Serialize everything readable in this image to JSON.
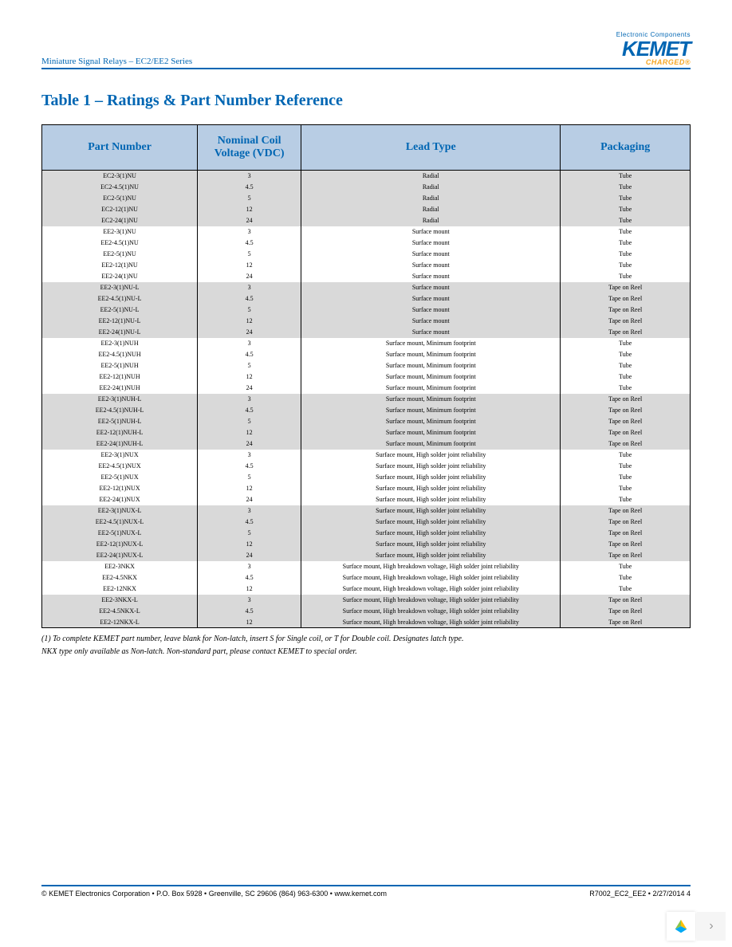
{
  "header": {
    "series": "Miniature Signal Relays – EC2/EE2 Series",
    "logo_tagline": "Electronic Components",
    "logo_text": "KEMET",
    "logo_sub": "CHARGED®"
  },
  "table": {
    "title": "Table 1 – Ratings & Part Number Reference",
    "columns": [
      "Part Number",
      "Nominal Coil Voltage (VDC)",
      "Lead Type",
      "Packaging"
    ],
    "groups": [
      {
        "shade": true,
        "rows": [
          [
            "EC2-3(1)NU",
            "3",
            "Radial",
            "Tube"
          ],
          [
            "EC2-4.5(1)NU",
            "4.5",
            "Radial",
            "Tube"
          ],
          [
            "EC2-5(1)NU",
            "5",
            "Radial",
            "Tube"
          ],
          [
            "EC2-12(1)NU",
            "12",
            "Radial",
            "Tube"
          ],
          [
            "EC2-24(1)NU",
            "24",
            "Radial",
            "Tube"
          ]
        ]
      },
      {
        "shade": false,
        "rows": [
          [
            "EE2-3(1)NU",
            "3",
            "Surface mount",
            "Tube"
          ],
          [
            "EE2-4.5(1)NU",
            "4.5",
            "Surface mount",
            "Tube"
          ],
          [
            "EE2-5(1)NU",
            "5",
            "Surface mount",
            "Tube"
          ],
          [
            "EE2-12(1)NU",
            "12",
            "Surface mount",
            "Tube"
          ],
          [
            "EE2-24(1)NU",
            "24",
            "Surface mount",
            "Tube"
          ]
        ]
      },
      {
        "shade": true,
        "rows": [
          [
            "EE2-3(1)NU-L",
            "3",
            "Surface mount",
            "Tape on Reel"
          ],
          [
            "EE2-4.5(1)NU-L",
            "4.5",
            "Surface mount",
            "Tape on Reel"
          ],
          [
            "EE2-5(1)NU-L",
            "5",
            "Surface mount",
            "Tape on Reel"
          ],
          [
            "EE2-12(1)NU-L",
            "12",
            "Surface mount",
            "Tape on Reel"
          ],
          [
            "EE2-24(1)NU-L",
            "24",
            "Surface mount",
            "Tape on Reel"
          ]
        ]
      },
      {
        "shade": false,
        "rows": [
          [
            "EE2-3(1)NUH",
            "3",
            "Surface mount, Minimum footprint",
            "Tube"
          ],
          [
            "EE2-4.5(1)NUH",
            "4.5",
            "Surface mount, Minimum footprint",
            "Tube"
          ],
          [
            "EE2-5(1)NUH",
            "5",
            "Surface mount, Minimum footprint",
            "Tube"
          ],
          [
            "EE2-12(1)NUH",
            "12",
            "Surface mount, Minimum footprint",
            "Tube"
          ],
          [
            "EE2-24(1)NUH",
            "24",
            "Surface mount, Minimum footprint",
            "Tube"
          ]
        ]
      },
      {
        "shade": true,
        "rows": [
          [
            "EE2-3(1)NUH-L",
            "3",
            "Surface mount, Minimum footprint",
            "Tape on Reel"
          ],
          [
            "EE2-4.5(1)NUH-L",
            "4.5",
            "Surface mount, Minimum footprint",
            "Tape on Reel"
          ],
          [
            "EE2-5(1)NUH-L",
            "5",
            "Surface mount, Minimum footprint",
            "Tape on Reel"
          ],
          [
            "EE2-12(1)NUH-L",
            "12",
            "Surface mount, Minimum footprint",
            "Tape on Reel"
          ],
          [
            "EE2-24(1)NUH-L",
            "24",
            "Surface mount, Minimum footprint",
            "Tape on Reel"
          ]
        ]
      },
      {
        "shade": false,
        "rows": [
          [
            "EE2-3(1)NUX",
            "3",
            "Surface mount, High solder joint reliability",
            "Tube"
          ],
          [
            "EE2-4.5(1)NUX",
            "4.5",
            "Surface mount, High solder joint reliability",
            "Tube"
          ],
          [
            "EE2-5(1)NUX",
            "5",
            "Surface mount, High solder joint reliability",
            "Tube"
          ],
          [
            "EE2-12(1)NUX",
            "12",
            "Surface mount, High solder joint reliability",
            "Tube"
          ],
          [
            "EE2-24(1)NUX",
            "24",
            "Surface mount, High solder joint reliability",
            "Tube"
          ]
        ]
      },
      {
        "shade": true,
        "rows": [
          [
            "EE2-3(1)NUX-L",
            "3",
            "Surface mount, High solder joint reliability",
            "Tape on Reel"
          ],
          [
            "EE2-4.5(1)NUX-L",
            "4.5",
            "Surface mount, High solder joint reliability",
            "Tape on Reel"
          ],
          [
            "EE2-5(1)NUX-L",
            "5",
            "Surface mount, High solder joint reliability",
            "Tape on Reel"
          ],
          [
            "EE2-12(1)NUX-L",
            "12",
            "Surface mount, High solder joint reliability",
            "Tape on Reel"
          ],
          [
            "EE2-24(1)NUX-L",
            "24",
            "Surface mount, High solder joint reliability",
            "Tape on Reel"
          ]
        ]
      },
      {
        "shade": false,
        "rows": [
          [
            "EE2-3NKX",
            "3",
            "Surface mount, High breakdown voltage, High solder joint reliability",
            "Tube"
          ],
          [
            "EE2-4.5NKX",
            "4.5",
            "Surface mount, High breakdown voltage, High solder joint reliability",
            "Tube"
          ],
          [
            "EE2-12NKX",
            "12",
            "Surface mount, High breakdown voltage, High solder joint reliability",
            "Tube"
          ]
        ]
      },
      {
        "shade": true,
        "rows": [
          [
            "EE2-3NKX-L",
            "3",
            "Surface mount, High breakdown voltage, High solder joint reliability",
            "Tape on Reel"
          ],
          [
            "EE2-4.5NKX-L",
            "4.5",
            "Surface mount, High breakdown voltage, High solder joint reliability",
            "Tape on Reel"
          ],
          [
            "EE2-12NKX-L",
            "12",
            "Surface mount, High breakdown voltage, High solder joint reliability",
            "Tape on Reel"
          ]
        ]
      }
    ]
  },
  "footnotes": [
    "(1) To complete KEMET part number, leave blank for Non-latch, insert S for Single coil, or T for Double coil. Designates latch type.",
    "  NKX type only available as Non-latch. Non-standard part, please contact KEMET to special order."
  ],
  "footer": {
    "left": "© KEMET Electronics Corporation • P.O. Box 5928 • Greenville, SC 29606 (864) 963-6300 • www.kemet.com",
    "right": "R7002_EC2_EE2 • 2/27/2014     4"
  },
  "colors": {
    "brand_blue": "#0066b3",
    "brand_orange": "#f5a623",
    "header_bg": "#b8cde4",
    "shade_bg": "#d9d9d9"
  }
}
